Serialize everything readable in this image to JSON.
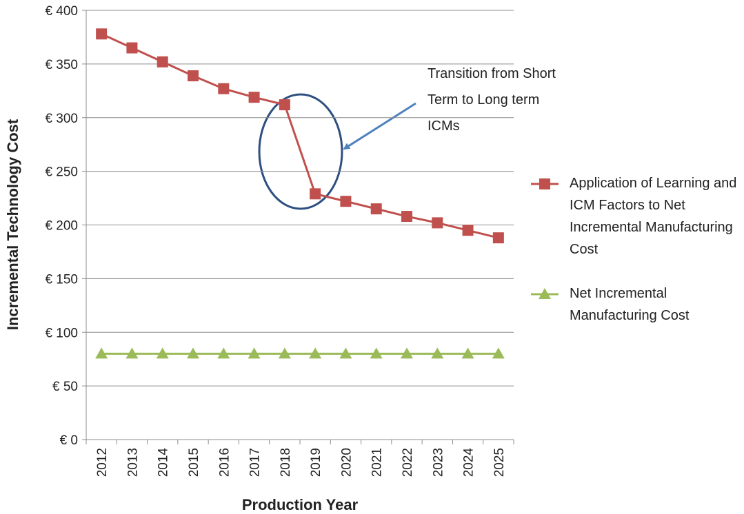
{
  "chart_data": {
    "type": "line",
    "y_label": "Incremental Technology Cost",
    "x_label": "Production Year",
    "annotation": "Transition from Short Term to Long term ICMs",
    "categories": [
      "2012",
      "2013",
      "2014",
      "2015",
      "2016",
      "2017",
      "2018",
      "2019",
      "2020",
      "2021",
      "2022",
      "2023",
      "2024",
      "2025"
    ],
    "series": [
      {
        "name": "Application of Learning and ICM Factors to Net Incremental Manufacturing Cost",
        "color": "#c0504d",
        "marker": "square",
        "values": [
          378,
          365,
          352,
          339,
          327,
          319,
          312,
          229,
          222,
          215,
          208,
          202,
          195,
          188
        ]
      },
      {
        "name": "Net Incremental Manufacturing Cost",
        "color": "#9bbb59",
        "marker": "triangle",
        "values": [
          80,
          80,
          80,
          80,
          80,
          80,
          80,
          80,
          80,
          80,
          80,
          80,
          80,
          80
        ]
      }
    ],
    "ylim": [
      0,
      400
    ],
    "yticks": [
      {
        "value": 0,
        "label": "€ 0"
      },
      {
        "value": 50,
        "label": "€ 50"
      },
      {
        "value": 100,
        "label": "€ 100"
      },
      {
        "value": 150,
        "label": "€ 150"
      },
      {
        "value": 200,
        "label": "€ 200"
      },
      {
        "value": 250,
        "label": "€ 250"
      },
      {
        "value": 300,
        "label": "€ 300"
      },
      {
        "value": 350,
        "label": "€ 350"
      },
      {
        "value": 400,
        "label": "€ 400"
      }
    ],
    "grid": true,
    "legend": "right"
  }
}
